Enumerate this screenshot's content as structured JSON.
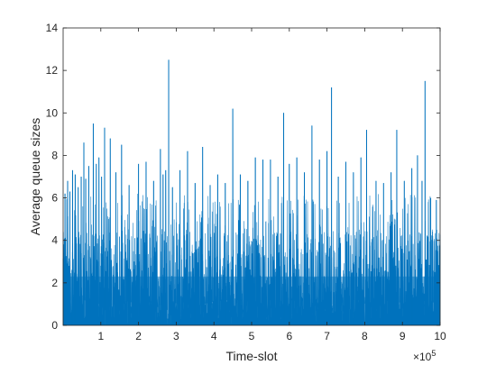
{
  "chart_data": {
    "type": "line",
    "title": "",
    "xlabel": "Time-slot",
    "ylabel": "Average queue sizes",
    "x_exponent_label": "×10",
    "x_exponent_power": "5",
    "x_scale": 100000,
    "xlim": [
      0,
      1000000
    ],
    "ylim": [
      0,
      14
    ],
    "x_ticks": [
      100000,
      200000,
      300000,
      400000,
      500000,
      600000,
      700000,
      800000,
      900000,
      1000000
    ],
    "x_tick_labels": [
      "1",
      "2",
      "3",
      "4",
      "5",
      "6",
      "7",
      "8",
      "9",
      "10"
    ],
    "y_ticks": [
      0,
      2,
      4,
      6,
      8,
      10,
      12,
      14
    ],
    "y_tick_labels": [
      "0",
      "2",
      "4",
      "6",
      "8",
      "10",
      "12",
      "14"
    ],
    "grid": false,
    "line_color": "#0072bd",
    "series": [
      {
        "name": "",
        "peaks": [
          [
            5000,
            6.2
          ],
          [
            12000,
            6.8
          ],
          [
            18000,
            6.3
          ],
          [
            25000,
            7.3
          ],
          [
            32000,
            7.1
          ],
          [
            40000,
            6.5
          ],
          [
            48000,
            7.0
          ],
          [
            55000,
            8.6
          ],
          [
            60000,
            6.9
          ],
          [
            68000,
            7.5
          ],
          [
            80000,
            9.5
          ],
          [
            88000,
            7.6
          ],
          [
            95000,
            7.9
          ],
          [
            102000,
            7.0
          ],
          [
            110000,
            9.3
          ],
          [
            125000,
            8.8
          ],
          [
            140000,
            7.2
          ],
          [
            155000,
            8.5
          ],
          [
            175000,
            6.6
          ],
          [
            200000,
            7.6
          ],
          [
            220000,
            7.7
          ],
          [
            240000,
            6.8
          ],
          [
            258000,
            8.3
          ],
          [
            265000,
            7.1
          ],
          [
            272000,
            7.3
          ],
          [
            280000,
            12.5
          ],
          [
            290000,
            6.5
          ],
          [
            310000,
            7.3
          ],
          [
            330000,
            8.2
          ],
          [
            350000,
            6.7
          ],
          [
            370000,
            8.4
          ],
          [
            390000,
            6.6
          ],
          [
            410000,
            7.1
          ],
          [
            430000,
            6.7
          ],
          [
            450000,
            10.2
          ],
          [
            470000,
            7.1
          ],
          [
            490000,
            6.8
          ],
          [
            510000,
            7.9
          ],
          [
            530000,
            7.8
          ],
          [
            550000,
            7.8
          ],
          [
            570000,
            7.0
          ],
          [
            585000,
            10.0
          ],
          [
            600000,
            7.6
          ],
          [
            620000,
            7.9
          ],
          [
            640000,
            7.2
          ],
          [
            660000,
            9.4
          ],
          [
            680000,
            7.8
          ],
          [
            700000,
            8.2
          ],
          [
            712000,
            11.2
          ],
          [
            730000,
            7.0
          ],
          [
            750000,
            7.7
          ],
          [
            770000,
            7.2
          ],
          [
            790000,
            7.9
          ],
          [
            805000,
            9.2
          ],
          [
            830000,
            6.8
          ],
          [
            850000,
            6.7
          ],
          [
            870000,
            7.2
          ],
          [
            885000,
            9.2
          ],
          [
            905000,
            6.8
          ],
          [
            925000,
            7.4
          ],
          [
            940000,
            8.0
          ],
          [
            952000,
            6.8
          ],
          [
            960000,
            11.5
          ],
          [
            975000,
            6.0
          ],
          [
            990000,
            5.9
          ]
        ]
      }
    ]
  }
}
